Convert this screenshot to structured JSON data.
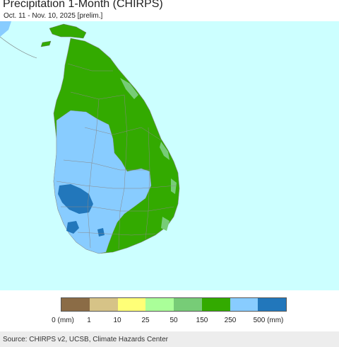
{
  "header": {
    "title": "Precipitation 1-Month (CHIRPS)",
    "subtitle": "Oct. 11 - Nov. 10, 2025 [prelim.]"
  },
  "map": {
    "region": "Sri Lanka",
    "colors": {
      "ocean": "#ccffff",
      "wet_100_250": "#33aa00",
      "wet_250_500": "#88ccff",
      "wet_500_plus": "#2277bb",
      "mid_50_150": "#77cc77",
      "boundary": "#777777"
    }
  },
  "legend": {
    "swatches": [
      "#8b6c46",
      "#d6c387",
      "#ffff77",
      "#aaff99",
      "#77cc77",
      "#33aa00",
      "#88ccff",
      "#2277bb"
    ],
    "ticks": [
      "0 (mm)",
      "1",
      "10",
      "25",
      "50",
      "150",
      "250",
      "500 (mm)"
    ]
  },
  "footer": {
    "source": "Source: CHIRPS v2, UCSB, Climate Hazards Center"
  }
}
